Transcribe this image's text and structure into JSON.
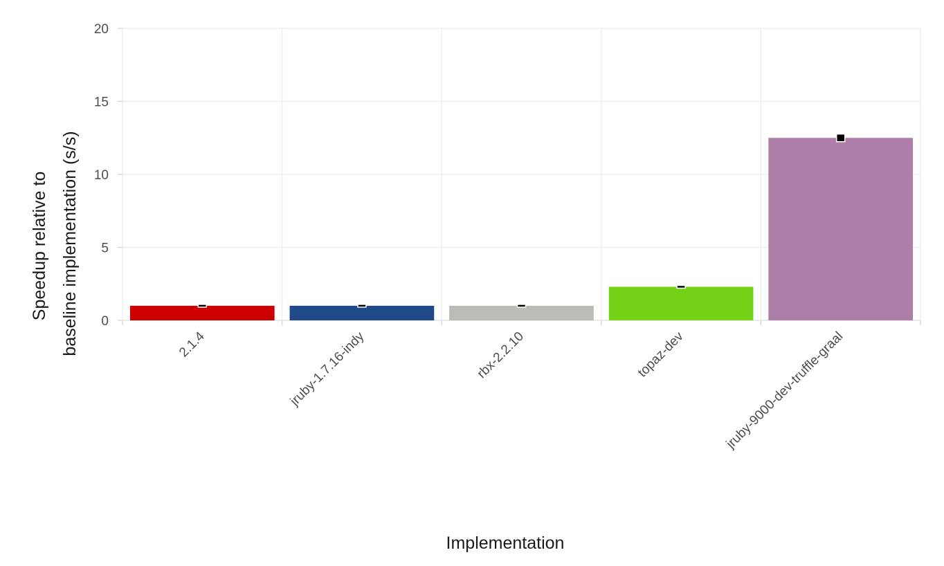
{
  "chart_data": {
    "type": "bar",
    "title": "",
    "xlabel": "Implementation",
    "ylabel": [
      "Speedup relative to",
      "baseline implementation (s/s)"
    ],
    "ylim": [
      0,
      20
    ],
    "yticks": [
      0,
      5,
      10,
      15,
      20
    ],
    "grid": true,
    "legend": "none",
    "categories": [
      "2.1.4",
      "jruby-1.7.16-indy",
      "rbx-2.2.10",
      "topaz-dev",
      "jruby-9000-dev-truffle-graal"
    ],
    "values": [
      1.0,
      1.0,
      1.0,
      2.3,
      12.5
    ],
    "error_markers": [
      1.0,
      1.0,
      1.0,
      2.3,
      12.5
    ],
    "colors": [
      "#cc0000",
      "#204a87",
      "#babdb6",
      "#73d216",
      "#ad7fa8"
    ]
  }
}
